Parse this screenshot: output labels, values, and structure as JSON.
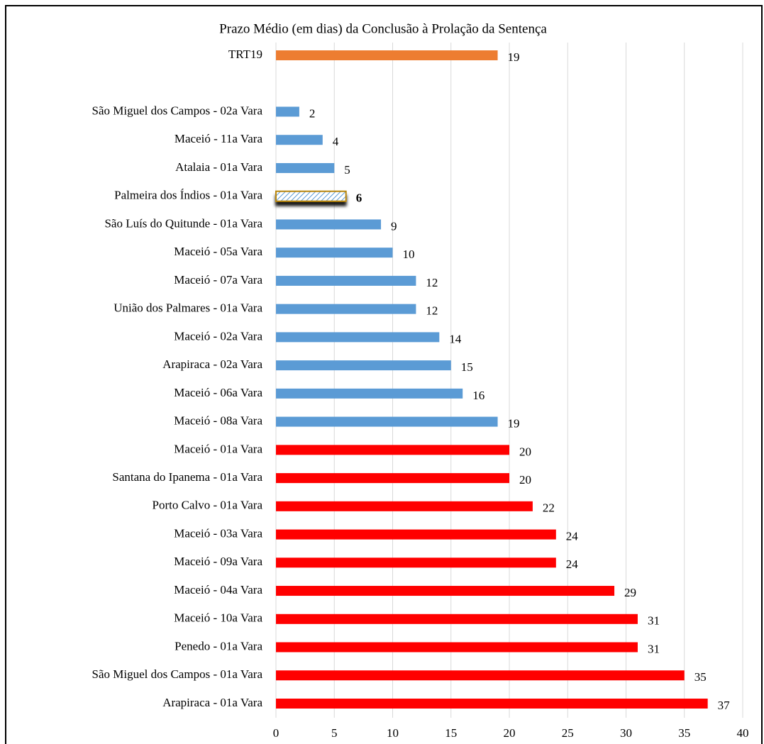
{
  "chart_data": {
    "type": "barh",
    "title": "Prazo Médio (em dias) da Conclusão à Prolação da Sentença",
    "categories": [
      "TRT19",
      null,
      "São Miguel dos Campos - 02a Vara",
      "Maceió - 11a Vara",
      "Atalaia - 01a Vara",
      "Palmeira dos Índios - 01a Vara",
      "São Luís do Quitunde - 01a Vara",
      "Maceió - 05a Vara",
      "Maceió - 07a Vara",
      "União dos Palmares - 01a Vara",
      "Maceió - 02a Vara",
      "Arapiraca - 02a Vara",
      "Maceió - 06a Vara",
      "Maceió - 08a Vara",
      "Maceió - 01a Vara",
      "Santana do Ipanema - 01a Vara",
      "Porto Calvo - 01a Vara",
      "Maceió - 03a Vara",
      "Maceió - 09a Vara",
      "Maceió - 04a Vara",
      "Maceió - 10a Vara",
      "Penedo - 01a Vara",
      "São Miguel dos Campos - 01a Vara",
      "Arapiraca - 01a Vara"
    ],
    "values": [
      19,
      null,
      2,
      4,
      5,
      6,
      9,
      10,
      12,
      12,
      14,
      15,
      16,
      19,
      20,
      20,
      22,
      24,
      24,
      29,
      31,
      31,
      35,
      37
    ],
    "colors": [
      "#ed7d31",
      null,
      "#5b9bd5",
      "#5b9bd5",
      "#5b9bd5",
      "#5b9bd5",
      "#5b9bd5",
      "#5b9bd5",
      "#5b9bd5",
      "#5b9bd5",
      "#5b9bd5",
      "#5b9bd5",
      "#5b9bd5",
      "#5b9bd5",
      "#ff0000",
      "#ff0000",
      "#ff0000",
      "#ff0000",
      "#ff0000",
      "#ff0000",
      "#ff0000",
      "#ff0000",
      "#ff0000",
      "#ff0000"
    ],
    "highlight_index": 5,
    "xlim": [
      0,
      40
    ],
    "xticks": [
      0,
      5,
      10,
      15,
      20,
      25,
      30,
      35,
      40
    ],
    "grid": true
  }
}
